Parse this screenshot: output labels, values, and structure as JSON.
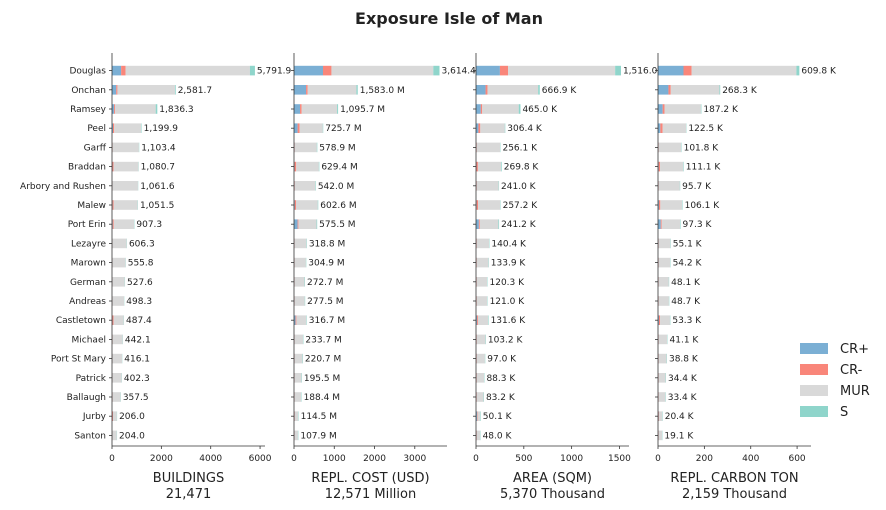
{
  "title": "Exposure Isle of Man",
  "colors": {
    "CR+": "#7BAFD4",
    "CR-": "#F9867A",
    "MUR": "#D9D9D9",
    "S": "#8FD5CB"
  },
  "legend": [
    "CR+",
    "CR-",
    "MUR",
    "S"
  ],
  "chart_data": {
    "type": "bar",
    "orientation": "horizontal",
    "stacked": true,
    "legend_position": "right",
    "categories": [
      "Douglas",
      "Onchan",
      "Ramsey",
      "Peel",
      "Garff",
      "Braddan",
      "Arbory and Rushen",
      "Malew",
      "Port Erin",
      "Lezayre",
      "Marown",
      "German",
      "Andreas",
      "Castletown",
      "Michael",
      "Port St Mary",
      "Patrick",
      "Ballaugh",
      "Jurby",
      "Santon"
    ],
    "panels": [
      {
        "xlabel": "BUILDINGS",
        "total": "21,471",
        "xlim": [
          0,
          6200
        ],
        "xticks": [
          0,
          2000,
          4000,
          6000
        ],
        "labels": [
          "5,791.9",
          "2,581.7",
          "1,836.3",
          "1,199.9",
          "1,103.4",
          "1,080.7",
          "1,061.6",
          "1,051.5",
          "907.3",
          "606.3",
          "555.8",
          "527.6",
          "498.3",
          "487.4",
          "442.1",
          "416.1",
          "402.3",
          "357.5",
          "206.0",
          "204.0"
        ],
        "series": [
          {
            "name": "CR+",
            "values": [
              370,
              170,
              80,
              40,
              5,
              20,
              5,
              25,
              30,
              5,
              5,
              5,
              5,
              20,
              5,
              5,
              5,
              5,
              20,
              5
            ]
          },
          {
            "name": "CR-",
            "values": [
              180,
              50,
              40,
              50,
              15,
              40,
              10,
              40,
              40,
              10,
              10,
              10,
              10,
              40,
              15,
              10,
              10,
              15,
              20,
              10
            ]
          },
          {
            "name": "MUR",
            "values": [
              5040,
              2330,
              1650,
              1090,
              1070,
              1010,
              1036,
              976,
              822,
              581,
              531,
              502,
              473,
              417,
              412,
              391,
              377,
              327,
              156,
              179
            ]
          },
          {
            "name": "S",
            "values": [
              202,
              32,
              66,
              20,
              13,
              11,
              11,
              11,
              15,
              10,
              10,
              11,
              10,
              10,
              10,
              10,
              10,
              11,
              10,
              10
            ]
          }
        ]
      },
      {
        "xlabel": "REPL. COST (USD)",
        "total": "12,571 Million",
        "xlim": [
          0,
          3800
        ],
        "xticks": [
          0,
          1000,
          2000,
          3000
        ],
        "labels": [
          "3,614.4 M",
          "1,583.0 M",
          "1,095.7 M",
          "725.7 M",
          "578.9 M",
          "629.4 M",
          "542.0 M",
          "602.6 M",
          "575.5 M",
          "318.8 M",
          "304.9 M",
          "272.7 M",
          "277.5 M",
          "316.7 M",
          "233.7 M",
          "220.7 M",
          "195.5 M",
          "188.4 M",
          "114.5 M",
          "107.9 M"
        ],
        "series": [
          {
            "name": "CR+",
            "values": [
              720,
              300,
              150,
              90,
              8,
              15,
              10,
              20,
              90,
              5,
              5,
              5,
              5,
              40,
              5,
              5,
              5,
              5,
              10,
              5
            ]
          },
          {
            "name": "CR-",
            "values": [
              210,
              40,
              40,
              50,
              10,
              40,
              10,
              30,
              20,
              10,
              10,
              10,
              10,
              20,
              10,
              10,
              10,
              10,
              10,
              10
            ]
          },
          {
            "name": "MUR",
            "values": [
              2530,
              1210,
              880,
              575,
              548,
              562,
              510,
              540,
              450,
              293,
              280,
              247,
              252,
              246,
              208,
              195,
              170,
              163,
              84,
              83
            ]
          },
          {
            "name": "S",
            "values": [
              154,
              33,
              25,
              10.7,
              12.9,
              12.4,
              12,
              12.6,
              15.5,
              10.8,
              9.9,
              10.7,
              10.5,
              10.7,
              10.7,
              10.7,
              10.5,
              10.4,
              10.5,
              9.9
            ]
          }
        ]
      },
      {
        "xlabel": "AREA (SQM)",
        "total": "5,370 Thousand",
        "xlim": [
          0,
          1600
        ],
        "xticks": [
          0,
          500,
          1000,
          1500
        ],
        "labels": [
          "1,516.0 K",
          "666.9 K",
          "465.0 K",
          "306.4 K",
          "256.1 K",
          "269.8 K",
          "241.0 K",
          "257.2 K",
          "241.2 K",
          "140.4 K",
          "133.9 K",
          "120.3 K",
          "121.0 K",
          "131.6 K",
          "103.2 K",
          "97.0 K",
          "88.3 K",
          "83.2 K",
          "50.1 K",
          "48.0 K"
        ],
        "series": [
          {
            "name": "CR+",
            "values": [
              250,
              100,
              50,
              25,
              3,
              5,
              3,
              7,
              30,
              3,
              3,
              3,
              3,
              10,
              3,
              3,
              3,
              3,
              10,
              3
            ]
          },
          {
            "name": "CR-",
            "values": [
              85,
              20,
              15,
              20,
              5,
              15,
              5,
              15,
              10,
              5,
              5,
              5,
              5,
              10,
              5,
              5,
              5,
              5,
              5,
              5
            ]
          },
          {
            "name": "MUR",
            "values": [
              1120,
              530,
              382,
              256,
              244,
              243,
              229,
              231,
              194,
              128,
              122,
              108,
              109,
              106,
              91,
              85,
              76,
              71,
              30,
              36
            ]
          },
          {
            "name": "S",
            "values": [
              61,
              16.9,
              18,
              5.4,
              4.1,
              6.8,
              4,
              4.2,
              7.2,
              4.4,
              3.9,
              4.3,
              4,
              5.6,
              4.2,
              4,
              4.3,
              4.2,
              5.1,
              4
            ]
          }
        ]
      },
      {
        "xlabel": "REPL. CARBON TON",
        "total": "2,159 Thousand",
        "xlim": [
          0,
          660
        ],
        "xticks": [
          0,
          200,
          400,
          600
        ],
        "labels": [
          "609.8 K",
          "268.3 K",
          "187.2 K",
          "122.5 K",
          "101.8 K",
          "111.1 K",
          "95.7 K",
          "106.1 K",
          "97.3 K",
          "55.1 K",
          "54.2 K",
          "48.1 K",
          "48.7 K",
          "53.3 K",
          "41.1 K",
          "38.8 K",
          "34.4 K",
          "33.4 K",
          "20.4 K",
          "19.1 K"
        ],
        "series": [
          {
            "name": "CR+",
            "values": [
              110,
              45,
              20,
              10,
              1,
              3,
              1,
              4,
              12,
              1,
              1,
              1,
              1,
              4,
              1,
              1,
              1,
              1,
              3,
              1
            ]
          },
          {
            "name": "CR-",
            "values": [
              35,
              10,
              8,
              10,
              2,
              6,
              2,
              6,
              4,
              2,
              2,
              2,
              2,
              5,
              2,
              2,
              2,
              2,
              2,
              2
            ]
          },
          {
            "name": "MUR",
            "values": [
              452,
              210,
              157,
              101,
              97,
              100,
              91,
              94,
              79,
              50.5,
              49.5,
              43.5,
              44,
              42.5,
              36.5,
              34.2,
              29.8,
              28.8,
              13.8,
              14.5
            ]
          },
          {
            "name": "S",
            "values": [
              12.8,
              3.3,
              2.2,
              1.5,
              1.8,
              2.1,
              1.7,
              2.1,
              2.3,
              1.6,
              1.7,
              1.6,
              1.7,
              1.8,
              1.6,
              1.6,
              1.6,
              1.6,
              1.6,
              1.6
            ]
          }
        ]
      }
    ]
  }
}
